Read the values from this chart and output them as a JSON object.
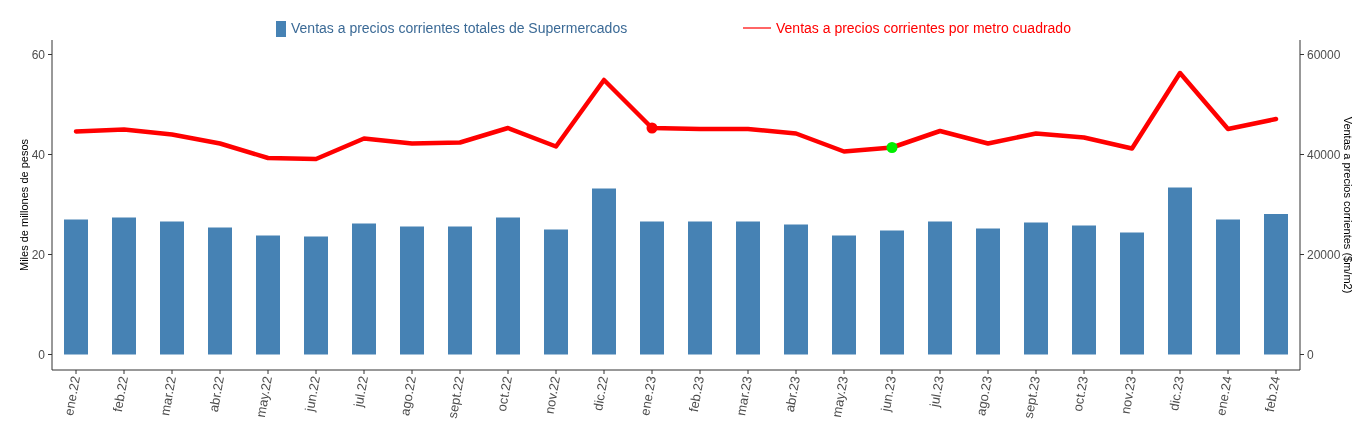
{
  "chart_data": {
    "type": "bar",
    "categories": [
      "ene.22",
      "feb.22",
      "mar.22",
      "abr.22",
      "may.22",
      "jun.22",
      "jul.22",
      "ago.22",
      "sept.22",
      "oct.22",
      "nov.22",
      "dic.22",
      "ene.23",
      "feb.23",
      "mar.23",
      "abr.23",
      "may.23",
      "jun.23",
      "jul.23",
      "ago.23",
      "sept.23",
      "oct.23",
      "nov.23",
      "dic.23",
      "ene.24",
      "feb.24"
    ],
    "ylabel": "Miles de millones de pesos",
    "y2label": "Ventas a precios corrientes ($m/m2)",
    "ylim": [
      -3.1,
      62.9
    ],
    "yticks": [
      0,
      20,
      40,
      60
    ],
    "y2lim": [
      -3100,
      62900
    ],
    "y2ticks": [
      0,
      20000,
      40000,
      60000
    ],
    "legend": "top",
    "grid": false,
    "series": [
      {
        "name": "Ventas a precios corrientes totales de Supermercados",
        "color": "#4682b4",
        "values": [
          27.0,
          27.4,
          26.6,
          25.4,
          23.8,
          23.6,
          26.2,
          25.6,
          25.6,
          27.4,
          25.0,
          33.2,
          26.6,
          26.6,
          26.6,
          26.0,
          23.8,
          24.8,
          26.6,
          25.2,
          26.4,
          25.8,
          24.4,
          33.4,
          27.0,
          28.1
        ]
      },
      {
        "name": "Ventas a precios corrientes por metro cuadrado",
        "type": "line",
        "axis": "y2",
        "color": "#ff0000",
        "values": [
          44600,
          45000,
          44000,
          42200,
          39300,
          39100,
          43200,
          42200,
          42400,
          45300,
          41600,
          54900,
          45300,
          45100,
          45100,
          44200,
          40600,
          41400,
          44700,
          42200,
          44200,
          43400,
          41200,
          56300,
          45100,
          47100
        ]
      },
      {
        "type": "scatter",
        "axis": "y2",
        "marker": "circle",
        "x": [
          "ene.23",
          "jun.23"
        ],
        "colors": [
          "#ff0000",
          "#00ee00"
        ],
        "values": [
          45300,
          41400
        ]
      }
    ]
  }
}
